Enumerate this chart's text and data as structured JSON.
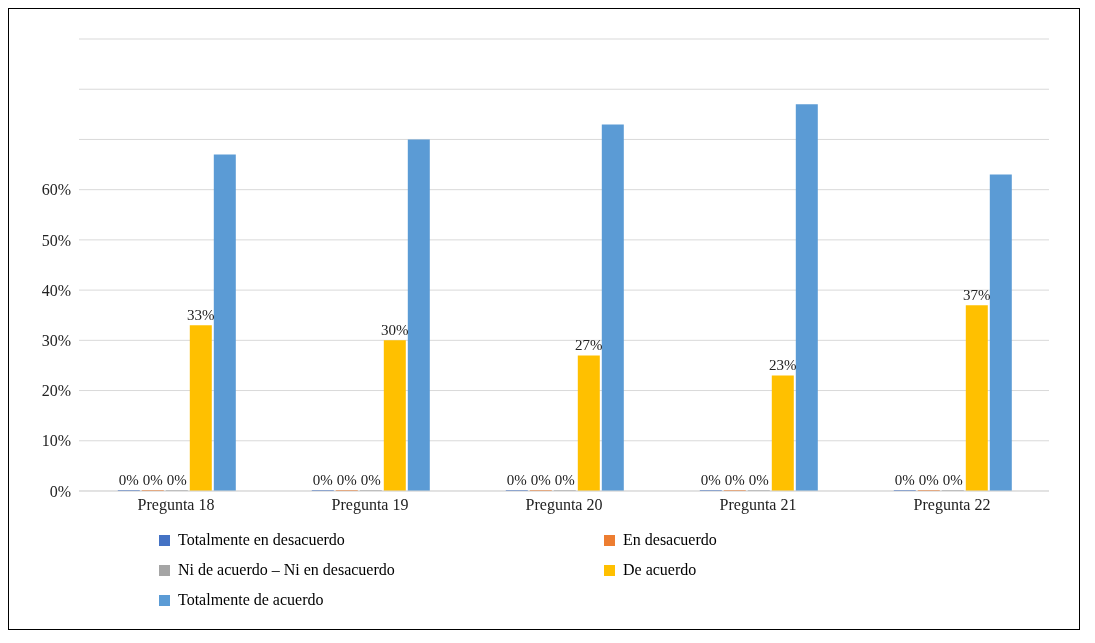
{
  "chart_data": {
    "type": "bar",
    "categories": [
      "Pregunta 18",
      "Pregunta 19",
      "Pregunta 20",
      "Pregunta 21",
      "Pregunta 22"
    ],
    "series": [
      {
        "name": "Totalmente en desacuerdo",
        "color": "#4472c4",
        "values": [
          0,
          0,
          0,
          0,
          0
        ],
        "value_labels": [
          "0%",
          "0%",
          "0%",
          "0%",
          "0%"
        ]
      },
      {
        "name": "En desacuerdo",
        "color": "#ed7d31",
        "values": [
          0,
          0,
          0,
          0,
          0
        ],
        "value_labels": [
          "0%",
          "0%",
          "0%",
          "0%",
          "0%"
        ]
      },
      {
        "name": "Ni de acuerdo – Ni en desacuerdo",
        "color": "#a5a5a5",
        "values": [
          0,
          0,
          0,
          0,
          0
        ],
        "value_labels": [
          "0%",
          "0%",
          "0%",
          "0%",
          "0%"
        ]
      },
      {
        "name": "De acuerdo",
        "color": "#ffc000",
        "values": [
          33,
          30,
          27,
          23,
          37
        ],
        "value_labels": [
          "33%",
          "30%",
          "27%",
          "23%",
          "37%"
        ]
      },
      {
        "name": "Totalmente de acuerdo",
        "color": "#5b9bd5",
        "values": [
          67,
          70,
          73,
          77,
          63
        ]
      }
    ],
    "ylim": [
      0,
      90
    ],
    "yticks": [
      {
        "value": 0,
        "label": "0%"
      },
      {
        "value": 10,
        "label": "10%"
      },
      {
        "value": 20,
        "label": "20%"
      },
      {
        "value": 30,
        "label": "30%"
      },
      {
        "value": 40,
        "label": "40%"
      },
      {
        "value": 50,
        "label": "50%"
      },
      {
        "value": 60,
        "label": "60%"
      },
      {
        "value": 70,
        "label": null
      },
      {
        "value": 80,
        "label": null
      },
      {
        "value": 90,
        "label": null
      }
    ],
    "grid": "y",
    "legend": "bottom"
  }
}
